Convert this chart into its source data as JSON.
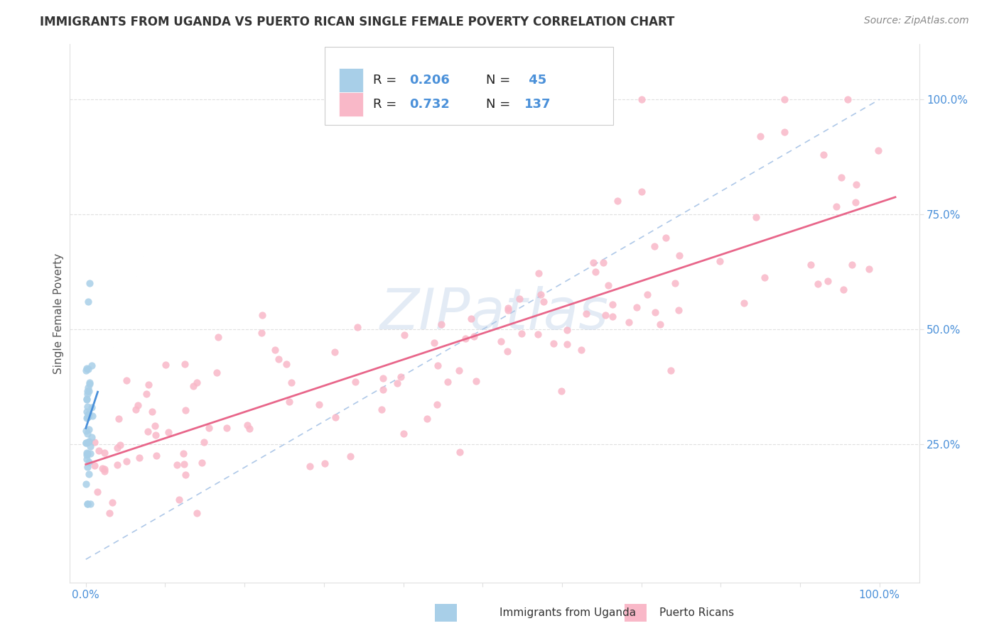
{
  "title": "IMMIGRANTS FROM UGANDA VS PUERTO RICAN SINGLE FEMALE POVERTY CORRELATION CHART",
  "source": "Source: ZipAtlas.com",
  "ylabel": "Single Female Poverty",
  "legend_blue_r": "0.206",
  "legend_blue_n": "45",
  "legend_pink_r": "0.732",
  "legend_pink_n": "137",
  "blue_scatter_color": "#a8cfe8",
  "pink_scatter_color": "#f9b8c8",
  "blue_line_color": "#4a90d9",
  "pink_line_color": "#e8668a",
  "dashed_line_color": "#aec8e8",
  "watermark_color": "#c8d8ec",
  "grid_color": "#e0e0e0",
  "bg_color": "#ffffff",
  "title_color": "#333333",
  "source_color": "#888888",
  "ylabel_color": "#555555",
  "tick_color": "#4a90d9",
  "legend_text_color": "#222222",
  "legend_value_color": "#4a90d9",
  "bottom_legend_color": "#333333",
  "ytick_positions": [
    0.25,
    0.5,
    0.75,
    1.0
  ],
  "ytick_labels": [
    "25.0%",
    "50.0%",
    "75.0%",
    "100.0%"
  ],
  "xtick_positions": [
    0.0,
    0.1,
    0.2,
    0.3,
    0.4,
    0.5,
    0.6,
    0.7,
    0.8,
    0.9,
    1.0
  ],
  "xlim": [
    -0.02,
    1.05
  ],
  "ylim": [
    -0.05,
    1.12
  ]
}
